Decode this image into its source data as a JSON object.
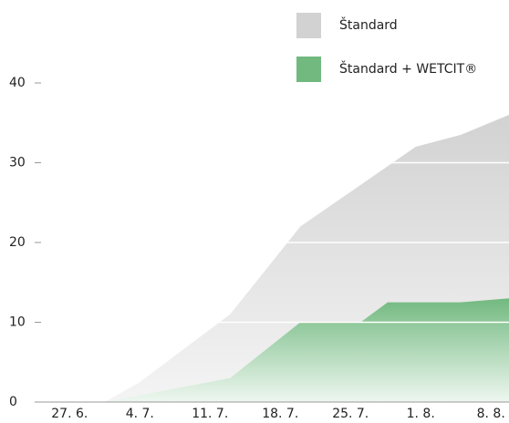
{
  "chart_data": {
    "type": "area",
    "series": [
      {
        "name": "Štandard",
        "color": "#d2d2d2",
        "x": [
          3.5,
          7,
          16,
          23,
          34.5,
          39,
          43.8
        ],
        "values": [
          0,
          2.5,
          11,
          22,
          32,
          33.5,
          36
        ]
      },
      {
        "name": "Štandard + WETCIT®",
        "color": "#72b980",
        "x": [
          3.5,
          16,
          23,
          29,
          31.7,
          39,
          43.8
        ],
        "values": [
          0,
          3,
          10,
          10,
          12.5,
          12.5,
          13
        ]
      }
    ],
    "xlim": [
      -3.3,
      43.8
    ],
    "xticks": [
      {
        "value": 0,
        "label": "27. 6."
      },
      {
        "value": 7,
        "label": "4. 7."
      },
      {
        "value": 14,
        "label": "11. 7."
      },
      {
        "value": 21,
        "label": "18. 7."
      },
      {
        "value": 28,
        "label": "25. 7."
      },
      {
        "value": 35,
        "label": "1. 8."
      },
      {
        "value": 42,
        "label": "8. 8."
      }
    ],
    "ylim": [
      0,
      40
    ],
    "yticks": [
      0,
      10,
      20,
      30,
      40
    ],
    "grid": true
  }
}
